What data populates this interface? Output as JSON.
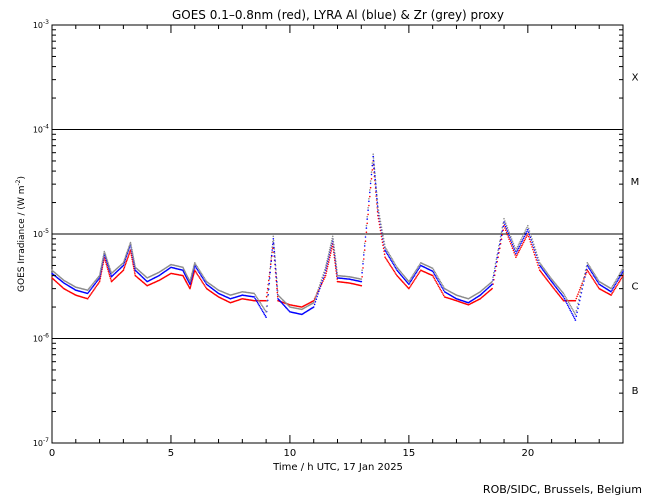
{
  "chart_data": {
    "type": "scatter",
    "title": "GOES 0.1–0.8nm (red), LYRA Al (blue) & Zr (grey) proxy",
    "xlabel": "Time / h UTC, 17 Jan 2025",
    "ylabel_main": "GOES Irradiance / (W m",
    "ylabel_exp": "-2",
    "ylabel_end": ")",
    "xlim": [
      0,
      24
    ],
    "ylim": [
      1e-07,
      0.001
    ],
    "yscale": "log",
    "xticks": [
      0,
      5,
      10,
      15,
      20
    ],
    "xtick_labels": [
      "0",
      "5",
      "10",
      "15",
      "20"
    ],
    "yticks": [
      {
        "value": 0.001,
        "base": "10",
        "exp": "-3"
      },
      {
        "value": 0.0001,
        "base": "10",
        "exp": "-4"
      },
      {
        "value": 1e-05,
        "base": "10",
        "exp": "-5"
      },
      {
        "value": 1e-06,
        "base": "10",
        "exp": "-6"
      },
      {
        "value": 1e-07,
        "base": "10",
        "exp": "-7"
      }
    ],
    "flare_thresholds": [
      0.0001,
      1e-05,
      1e-06
    ],
    "flare_classes": [
      {
        "label": "X",
        "value": 0.00032
      },
      {
        "label": "M",
        "value": 3.2e-05
      },
      {
        "label": "C",
        "value": 3.2e-06
      },
      {
        "label": "B",
        "value": 3.2e-07
      }
    ],
    "x": [
      0.0,
      0.5,
      1.0,
      1.5,
      2.0,
      2.2,
      2.5,
      3.0,
      3.3,
      3.5,
      4.0,
      4.5,
      5.0,
      5.5,
      5.8,
      6.0,
      6.5,
      7.0,
      7.5,
      8.0,
      8.5,
      9.0,
      9.3,
      9.5,
      10.0,
      10.5,
      11.0,
      11.5,
      11.8,
      12.0,
      12.5,
      13.0,
      13.5,
      13.7,
      14.0,
      14.5,
      15.0,
      15.5,
      16.0,
      16.5,
      17.0,
      17.5,
      18.0,
      18.5,
      19.0,
      19.5,
      20.0,
      20.5,
      21.0,
      21.5,
      22.0,
      22.5,
      23.0,
      23.5,
      24.0
    ],
    "series": [
      {
        "name": "GOES 0.1–0.8nm",
        "color": "#ff0000",
        "values": [
          3.8e-06,
          3e-06,
          2.6e-06,
          2.4e-06,
          3.5e-06,
          6e-06,
          3.5e-06,
          4.5e-06,
          7e-06,
          4e-06,
          3.2e-06,
          3.6e-06,
          4.2e-06,
          4e-06,
          3e-06,
          4.5e-06,
          3e-06,
          2.5e-06,
          2.2e-06,
          2.4e-06,
          2.3e-06,
          2.3e-06,
          8e-06,
          2.3e-06,
          2.1e-06,
          2e-06,
          2.3e-06,
          4e-06,
          8e-06,
          3.5e-06,
          3.4e-06,
          3.2e-06,
          5e-05,
          1.5e-05,
          6e-06,
          4e-06,
          3e-06,
          4.5e-06,
          4e-06,
          2.5e-06,
          2.3e-06,
          2.1e-06,
          2.4e-06,
          3e-06,
          1.2e-05,
          6e-06,
          1e-05,
          4.5e-06,
          3.2e-06,
          2.3e-06,
          2.3e-06,
          4.5e-06,
          3e-06,
          2.6e-06,
          4e-06
        ]
      },
      {
        "name": "LYRA Al",
        "color": "#0000ff",
        "values": [
          4.2e-06,
          3.4e-06,
          2.9e-06,
          2.7e-06,
          3.8e-06,
          6.5e-06,
          3.9e-06,
          5e-06,
          8e-06,
          4.5e-06,
          3.5e-06,
          4e-06,
          4.8e-06,
          4.5e-06,
          3.3e-06,
          5e-06,
          3.3e-06,
          2.7e-06,
          2.4e-06,
          2.6e-06,
          2.5e-06,
          1.6e-06,
          9e-06,
          2.4e-06,
          1.8e-06,
          1.7e-06,
          2e-06,
          4.5e-06,
          9e-06,
          3.8e-06,
          3.7e-06,
          3.5e-06,
          5.5e-05,
          1.7e-05,
          7e-06,
          4.5e-06,
          3.3e-06,
          5e-06,
          4.4e-06,
          2.8e-06,
          2.4e-06,
          2.2e-06,
          2.6e-06,
          3.3e-06,
          1.3e-05,
          6.5e-06,
          1.1e-05,
          5e-06,
          3.5e-06,
          2.5e-06,
          1.5e-06,
          5e-06,
          3.3e-06,
          2.8e-06,
          4.4e-06
        ]
      },
      {
        "name": "LYRA Zr",
        "color": "#8c8c8c",
        "values": [
          4.5e-06,
          3.6e-06,
          3.1e-06,
          2.9e-06,
          4e-06,
          6.8e-06,
          4.2e-06,
          5.3e-06,
          8.3e-06,
          4.8e-06,
          3.8e-06,
          4.3e-06,
          5.1e-06,
          4.8e-06,
          3.5e-06,
          5.3e-06,
          3.5e-06,
          2.9e-06,
          2.6e-06,
          2.8e-06,
          2.7e-06,
          1.8e-06,
          9.5e-06,
          2.6e-06,
          2e-06,
          1.9e-06,
          2.2e-06,
          4.8e-06,
          9.5e-06,
          4e-06,
          3.9e-06,
          3.7e-06,
          5.8e-05,
          1.8e-05,
          7.5e-06,
          4.8e-06,
          3.5e-06,
          5.3e-06,
          4.7e-06,
          3e-06,
          2.6e-06,
          2.4e-06,
          2.8e-06,
          3.5e-06,
          1.4e-05,
          7e-06,
          1.2e-05,
          5.3e-06,
          3.7e-06,
          2.7e-06,
          1.7e-06,
          5.3e-06,
          3.5e-06,
          3e-06,
          4.7e-06
        ]
      }
    ]
  },
  "credit": "ROB/SIDC, Brussels, Belgium"
}
